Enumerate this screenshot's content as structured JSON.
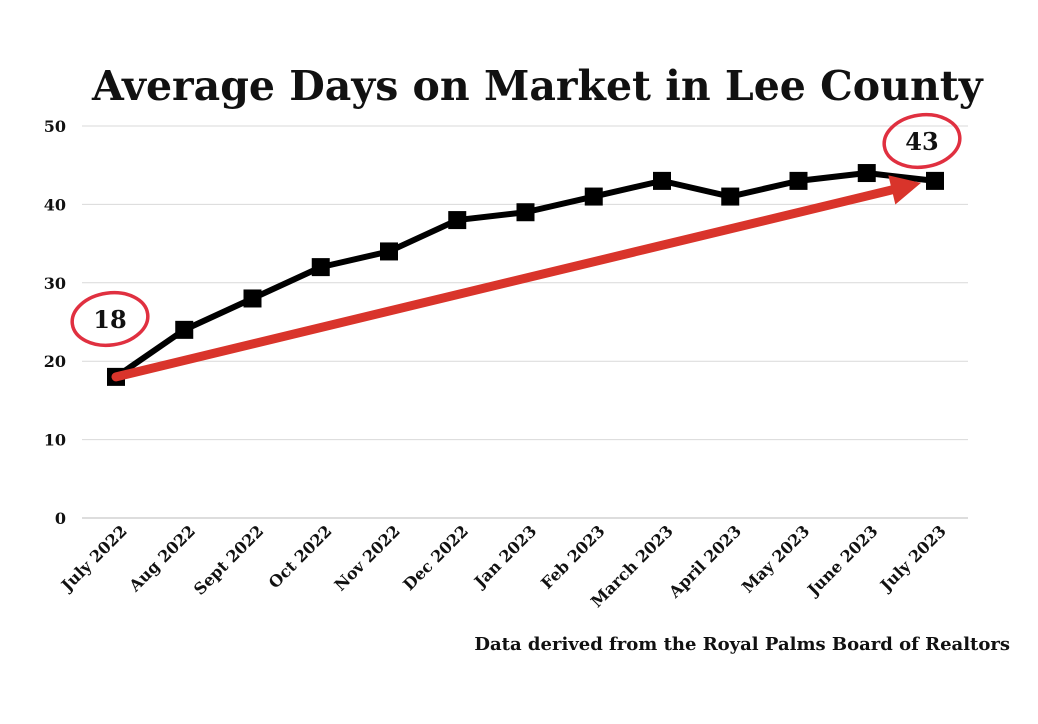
{
  "chart_data": {
    "type": "line",
    "title": "Average Days on Market in Lee County",
    "categories": [
      "July 2022",
      "Aug 2022",
      "Sept 2022",
      "Oct 2022",
      "Nov 2022",
      "Dec 2022",
      "Jan 2023",
      "Feb 2023",
      "March 2023",
      "April 2023",
      "May 2023",
      "June 2023",
      "July 2023"
    ],
    "values": [
      18,
      24,
      28,
      32,
      34,
      38,
      39,
      41,
      43,
      41,
      43,
      44,
      43
    ],
    "ylim": [
      0,
      50
    ],
    "yticks": [
      "0",
      "10",
      "20",
      "30",
      "40",
      "50"
    ],
    "grid": true,
    "legend": "none",
    "source": "Data derived from the Royal Palms Board of Realtors",
    "callouts": [
      {
        "label": "18",
        "value": 18,
        "category": "July 2022"
      },
      {
        "label": "43",
        "value": 43,
        "category": "July 2023"
      }
    ],
    "trend_arrow": {
      "from_value": 18,
      "to_value": 43
    },
    "colors": {
      "line": "#000000",
      "gridline": "#d9d9d9",
      "trend_arrow": "#d9342b",
      "callout_circle": "#e03040"
    }
  }
}
